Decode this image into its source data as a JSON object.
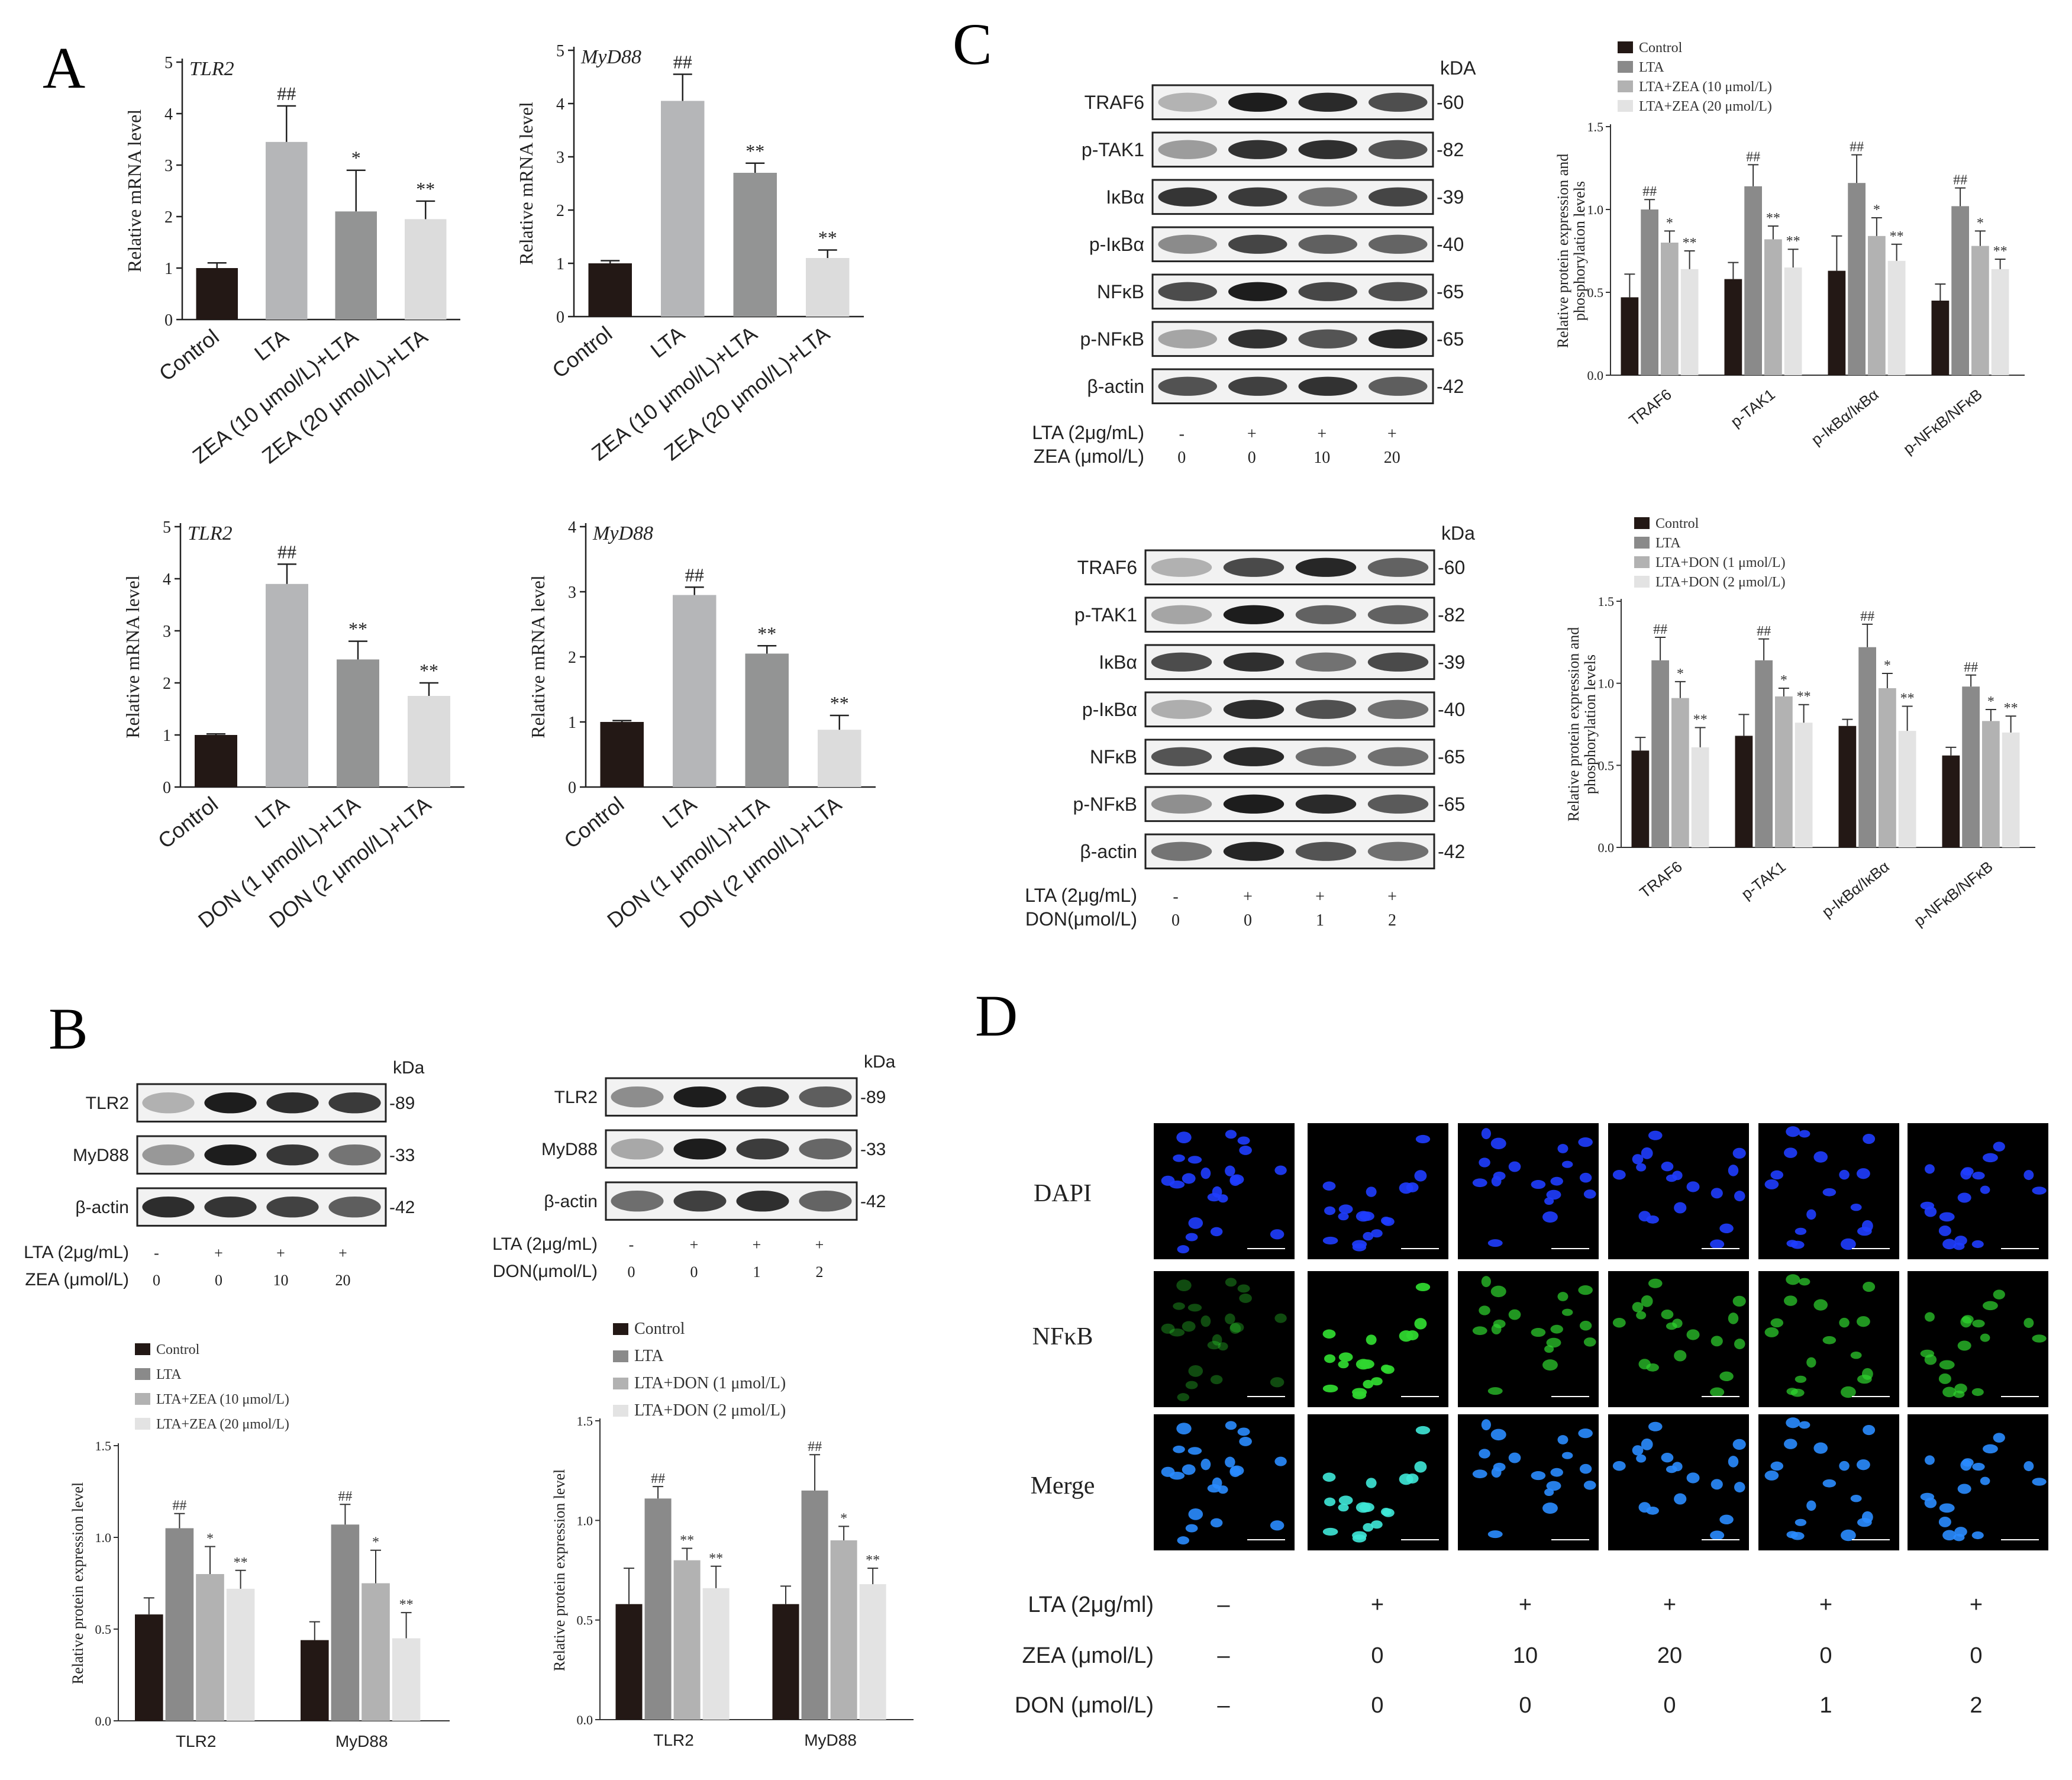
{
  "panels": [
    {
      "letter": "A"
    },
    {
      "letter": "B"
    },
    {
      "letter": "C"
    },
    {
      "letter": "D"
    }
  ],
  "colors": {
    "control": "#231815",
    "lta": "#8a8a8a",
    "mid": "#b2b2b2",
    "high": "#e3e3e3",
    "a_lta": "#b5b6b8",
    "a_mid": "#939494",
    "a_high": "#dcdcdc"
  },
  "panelA": {
    "ylabel": "Relative mRNA level",
    "legend_zea": [
      "Control",
      "LTA",
      "ZEA (10 μmol/L)+LTA",
      "ZEA (20 μmol/L)+LTA"
    ],
    "legend_don": [
      "Control",
      "LTA",
      "DON (1 μmol/L)+LTA",
      "DON (2 μmol/L)+LTA"
    ]
  },
  "panelB": {
    "zea_blot": {
      "kda": "kDa",
      "rows": [
        {
          "name": "TLR2",
          "kda": "-89"
        },
        {
          "name": "MyD88",
          "kda": "-33"
        },
        {
          "name": "β-actin",
          "kda": "-42"
        }
      ],
      "treat": [
        {
          "label": "LTA (2μg/mL)",
          "vals": [
            "-",
            "+",
            "+",
            "+"
          ]
        },
        {
          "label": "ZEA (μmol/L)",
          "vals": [
            "0",
            "0",
            "10",
            "20"
          ]
        }
      ]
    },
    "don_blot": {
      "kda": "kDa",
      "rows": [
        {
          "name": "TLR2",
          "kda": "-89"
        },
        {
          "name": "MyD88",
          "kda": "-33"
        },
        {
          "name": "β-actin",
          "kda": "-42"
        }
      ],
      "treat": [
        {
          "label": "LTA (2μg/mL)",
          "vals": [
            "-",
            "+",
            "+",
            "+"
          ]
        },
        {
          "label": "DON(μmol/L)",
          "vals": [
            "0",
            "0",
            "1",
            "2"
          ]
        }
      ]
    },
    "ylabel": "Relative  protein expression level",
    "legend_zea": [
      "Control",
      "LTA",
      "LTA+ZEA (10 μmol/L)",
      "LTA+ZEA (20 μmol/L)"
    ],
    "legend_don": [
      "Control",
      "LTA",
      "LTA+DON (1 μmol/L)",
      "LTA+DON (2 μmol/L)"
    ]
  },
  "panelC": {
    "zea_blot": {
      "kda": "kDA",
      "rows": [
        {
          "name": "TRAF6",
          "kda": "-60"
        },
        {
          "name": "p-TAK1",
          "kda": "-82"
        },
        {
          "name": "IκBα",
          "kda": "-39"
        },
        {
          "name": "p-IκBα",
          "kda": "-40"
        },
        {
          "name": "NFκB",
          "kda": "-65"
        },
        {
          "name": "p-NFκB",
          "kda": "-65"
        },
        {
          "name": "β-actin",
          "kda": "-42"
        }
      ],
      "treat": [
        {
          "label": "LTA (2μg/mL)",
          "vals": [
            "-",
            "+",
            "+",
            "+"
          ]
        },
        {
          "label": "ZEA (μmol/L)",
          "vals": [
            "0",
            "0",
            "10",
            "20"
          ]
        }
      ]
    },
    "don_blot": {
      "kda": "kDa",
      "rows": [
        {
          "name": "TRAF6",
          "kda": "-60"
        },
        {
          "name": "p-TAK1",
          "kda": "-82"
        },
        {
          "name": "IκBα",
          "kda": "-39"
        },
        {
          "name": "p-IκBα",
          "kda": "-40"
        },
        {
          "name": "NFκB",
          "kda": "-65"
        },
        {
          "name": "p-NFκB",
          "kda": "-65"
        },
        {
          "name": "β-actin",
          "kda": "-42"
        }
      ],
      "treat": [
        {
          "label": "LTA (2μg/mL)",
          "vals": [
            "-",
            "+",
            "+",
            "+"
          ]
        },
        {
          "label": "DON(μmol/L)",
          "vals": [
            "0",
            "0",
            "1",
            "2"
          ]
        }
      ]
    },
    "ylabel_l1": "Relative protein expression and",
    "ylabel_l2": "phosphorylation levels",
    "legend_zea": [
      "Control",
      "LTA",
      "LTA+ZEA (10 μmol/L)",
      "LTA+ZEA (20 μmol/L)"
    ],
    "legend_don": [
      "Control",
      "LTA",
      "LTA+DON (1 μmol/L)",
      "LTA+DON (2 μmol/L)"
    ]
  },
  "panelD": {
    "rows": [
      "DAPI",
      "NFκB",
      "Merge"
    ],
    "treat": [
      {
        "label": "LTA (2μg/ml)",
        "vals": [
          "–",
          "+",
          "+",
          "+",
          "+",
          "+"
        ]
      },
      {
        "label": "ZEA (μmol/L)",
        "vals": [
          "–",
          "0",
          "10",
          "20",
          "0",
          "0"
        ]
      },
      {
        "label": "DON (μmol/L)",
        "vals": [
          "–",
          "0",
          "0",
          "0",
          "1",
          "2"
        ]
      }
    ],
    "colors": {
      "dapi": "#1f3dff",
      "nfkb": "#2fd62f",
      "merge_nuc": "#2a8cff",
      "bg": "#000000"
    }
  },
  "chart_data": [
    {
      "type": "bar",
      "panel": "A",
      "title": "TLR2",
      "categories": [
        "Control",
        "LTA",
        "ZEA (10 μmol/L)+LTA",
        "ZEA (20 μmol/L)+LTA"
      ],
      "values": [
        1.0,
        3.45,
        2.1,
        1.95
      ],
      "errors": [
        0.1,
        0.7,
        0.8,
        0.35
      ],
      "annotations": [
        "",
        "##",
        "*",
        "**"
      ],
      "ylabel": "Relative mRNA level",
      "ylim": [
        0,
        5
      ],
      "yticks": [
        "0",
        "1",
        "2",
        "3",
        "4",
        "5"
      ]
    },
    {
      "type": "bar",
      "panel": "A",
      "title": "MyD88",
      "categories": [
        "Control",
        "LTA",
        "ZEA (10 μmol/L)+LTA",
        "ZEA (20 μmol/L)+LTA"
      ],
      "values": [
        1.0,
        4.05,
        2.7,
        1.1
      ],
      "errors": [
        0.05,
        0.5,
        0.18,
        0.15
      ],
      "annotations": [
        "",
        "##",
        "**",
        "**"
      ],
      "ylabel": "Relative mRNA level",
      "ylim": [
        0,
        5
      ],
      "yticks": [
        "0",
        "1",
        "2",
        "3",
        "4",
        "5"
      ]
    },
    {
      "type": "bar",
      "panel": "A",
      "title": "TLR2",
      "categories": [
        "Control",
        "LTA",
        "DON (1 μmol/L)+LTA",
        "DON (2 μmol/L)+LTA"
      ],
      "values": [
        1.0,
        3.9,
        2.45,
        1.75
      ],
      "errors": [
        0.02,
        0.38,
        0.35,
        0.25
      ],
      "annotations": [
        "",
        "##",
        "**",
        "**"
      ],
      "ylabel": "Relative mRNA level",
      "ylim": [
        0,
        5
      ],
      "yticks": [
        "0",
        "1",
        "2",
        "3",
        "4",
        "5"
      ]
    },
    {
      "type": "bar",
      "panel": "A",
      "title": "MyD88",
      "categories": [
        "Control",
        "LTA",
        "DON (1 μmol/L)+LTA",
        "DON (2 μmol/L)+LTA"
      ],
      "values": [
        1.0,
        2.95,
        2.05,
        0.88
      ],
      "errors": [
        0.02,
        0.12,
        0.12,
        0.22
      ],
      "annotations": [
        "",
        "##",
        "**",
        "**"
      ],
      "ylabel": "Relative mRNA level",
      "ylim": [
        0,
        4
      ],
      "yticks": [
        "0",
        "1",
        "2",
        "3",
        "4"
      ]
    },
    {
      "type": "bar",
      "panel": "B",
      "categories": [
        "TLR2",
        "MyD88"
      ],
      "series": [
        {
          "name": "Control",
          "values": [
            0.58,
            0.44
          ],
          "errors": [
            0.09,
            0.1
          ],
          "annotations": [
            "",
            ""
          ]
        },
        {
          "name": "LTA",
          "values": [
            1.05,
            1.07
          ],
          "errors": [
            0.08,
            0.11
          ],
          "annotations": [
            "##",
            "##"
          ]
        },
        {
          "name": "LTA+ZEA (10 μmol/L)",
          "values": [
            0.8,
            0.75
          ],
          "errors": [
            0.15,
            0.18
          ],
          "annotations": [
            "*",
            "*"
          ]
        },
        {
          "name": "LTA+ZEA (20 μmol/L)",
          "values": [
            0.72,
            0.45
          ],
          "errors": [
            0.1,
            0.14
          ],
          "annotations": [
            "**",
            "**"
          ]
        }
      ],
      "ylabel": "Relative  protein expression level",
      "ylim": [
        0,
        1.5
      ],
      "yticks": [
        "0.0",
        "0.5",
        "1.0",
        "1.5"
      ]
    },
    {
      "type": "bar",
      "panel": "B",
      "categories": [
        "TLR2",
        "MyD88"
      ],
      "series": [
        {
          "name": "Control",
          "values": [
            0.58,
            0.58
          ],
          "errors": [
            0.18,
            0.09
          ],
          "annotations": [
            "",
            ""
          ]
        },
        {
          "name": "LTA",
          "values": [
            1.11,
            1.15
          ],
          "errors": [
            0.06,
            0.18
          ],
          "annotations": [
            "##",
            "##"
          ]
        },
        {
          "name": "LTA+DON (1 μmol/L)",
          "values": [
            0.8,
            0.9
          ],
          "errors": [
            0.06,
            0.07
          ],
          "annotations": [
            "**",
            "*"
          ]
        },
        {
          "name": "LTA+DON (2 μmol/L)",
          "values": [
            0.66,
            0.68
          ],
          "errors": [
            0.11,
            0.08
          ],
          "annotations": [
            "**",
            "**"
          ]
        }
      ],
      "ylabel": "Relative  protein expression level",
      "ylim": [
        0,
        1.5
      ],
      "yticks": [
        "0.0",
        "0.5",
        "1.0",
        "1.5"
      ]
    },
    {
      "type": "bar",
      "panel": "C",
      "categories": [
        "TRAF6",
        "p-TAK1",
        "p-IκBα/IκBα",
        "p-NFκB/NFκB"
      ],
      "series": [
        {
          "name": "Control",
          "values": [
            0.47,
            0.58,
            0.63,
            0.45
          ],
          "errors": [
            0.14,
            0.1,
            0.21,
            0.1
          ],
          "annotations": [
            "",
            "",
            "",
            ""
          ]
        },
        {
          "name": "LTA",
          "values": [
            1.0,
            1.14,
            1.16,
            1.02
          ],
          "errors": [
            0.06,
            0.13,
            0.17,
            0.11
          ],
          "annotations": [
            "##",
            "##",
            "##",
            "##"
          ]
        },
        {
          "name": "LTA+ZEA (10 μmol/L)",
          "values": [
            0.8,
            0.82,
            0.84,
            0.78
          ],
          "errors": [
            0.07,
            0.08,
            0.11,
            0.09
          ],
          "annotations": [
            "*",
            "**",
            "*",
            "*"
          ]
        },
        {
          "name": "LTA+ZEA (20 μmol/L)",
          "values": [
            0.64,
            0.65,
            0.69,
            0.64
          ],
          "errors": [
            0.11,
            0.11,
            0.1,
            0.06
          ],
          "annotations": [
            "**",
            "**",
            "**",
            "**"
          ]
        }
      ],
      "ylabel": "Relative protein expression and phosphorylation levels",
      "ylim": [
        0,
        1.5
      ],
      "yticks": [
        "0.0",
        "0.5",
        "1.0",
        "1.5"
      ]
    },
    {
      "type": "bar",
      "panel": "C",
      "categories": [
        "TRAF6",
        "p-TAK1",
        "p-IκBα/IκBα",
        "p-NFκB/NFκB"
      ],
      "series": [
        {
          "name": "Control",
          "values": [
            0.59,
            0.68,
            0.74,
            0.56
          ],
          "errors": [
            0.08,
            0.13,
            0.04,
            0.05
          ],
          "annotations": [
            "",
            "",
            "",
            ""
          ]
        },
        {
          "name": "LTA",
          "values": [
            1.14,
            1.14,
            1.22,
            0.98
          ],
          "errors": [
            0.14,
            0.13,
            0.14,
            0.07
          ],
          "annotations": [
            "##",
            "##",
            "##",
            "##"
          ]
        },
        {
          "name": "LTA+DON (1 μmol/L)",
          "values": [
            0.91,
            0.92,
            0.97,
            0.77
          ],
          "errors": [
            0.1,
            0.05,
            0.09,
            0.07
          ],
          "annotations": [
            "*",
            "*",
            "*",
            "*"
          ]
        },
        {
          "name": "LTA+DON (2 μmol/L)",
          "values": [
            0.61,
            0.76,
            0.71,
            0.7
          ],
          "errors": [
            0.12,
            0.11,
            0.15,
            0.1
          ],
          "annotations": [
            "**",
            "**",
            "**",
            "**"
          ]
        }
      ],
      "ylabel": "Relative protein expression and phosphorylation levels",
      "ylim": [
        0,
        1.5
      ],
      "yticks": [
        "0.0",
        "0.5",
        "1.0",
        "1.5"
      ]
    }
  ]
}
